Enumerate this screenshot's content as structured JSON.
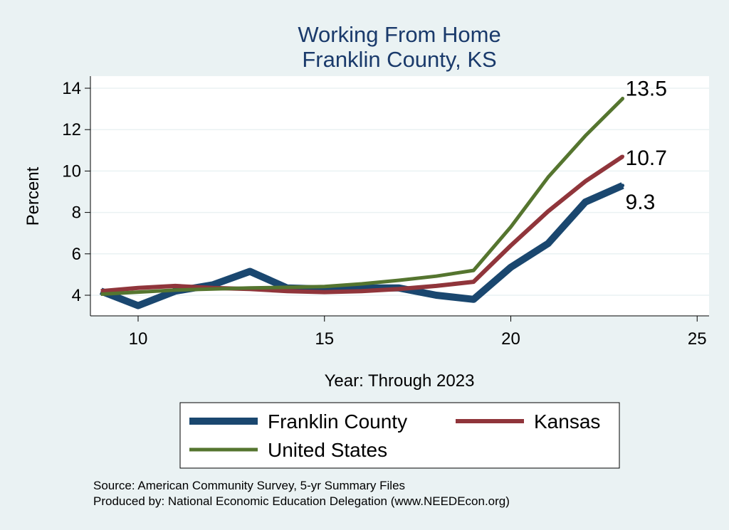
{
  "chart_data": {
    "type": "line",
    "title": "Working From Home",
    "subtitle": "Franklin County, KS",
    "xlabel": "Year: Through 2023",
    "ylabel": "Percent",
    "xlim": [
      9,
      25
    ],
    "ylim": [
      3,
      14.5
    ],
    "x_ticks": [
      10,
      15,
      20,
      25
    ],
    "y_ticks": [
      4,
      6,
      8,
      10,
      12,
      14
    ],
    "grid": "horizontal",
    "legend_position": "bottom",
    "x": [
      9,
      10,
      11,
      12,
      13,
      14,
      15,
      16,
      17,
      18,
      19,
      20,
      21,
      22,
      23
    ],
    "series": [
      {
        "name": "Franklin County",
        "color": "#1a476f",
        "values": [
          4.2,
          3.5,
          4.2,
          4.5,
          5.15,
          4.35,
          4.3,
          4.35,
          4.35,
          4.0,
          3.8,
          5.35,
          6.5,
          8.5,
          9.3
        ],
        "end_label": "9.3"
      },
      {
        "name": "Kansas",
        "color": "#90353b",
        "values": [
          4.2,
          4.35,
          4.45,
          4.35,
          4.3,
          4.2,
          4.15,
          4.2,
          4.3,
          4.45,
          4.65,
          6.4,
          8.05,
          9.5,
          10.7
        ],
        "end_label": "10.7"
      },
      {
        "name": "United States",
        "color": "#55752f",
        "values": [
          4.05,
          4.15,
          4.25,
          4.3,
          4.35,
          4.38,
          4.42,
          4.55,
          4.72,
          4.92,
          5.2,
          7.3,
          9.7,
          11.7,
          13.5
        ],
        "end_label": "13.5"
      }
    ],
    "source_lines": [
      "Source: American Community Survey, 5-yr Summary Files",
      "Produced by: National Economic Education Delegation (www.NEEDEcon.org)"
    ]
  }
}
